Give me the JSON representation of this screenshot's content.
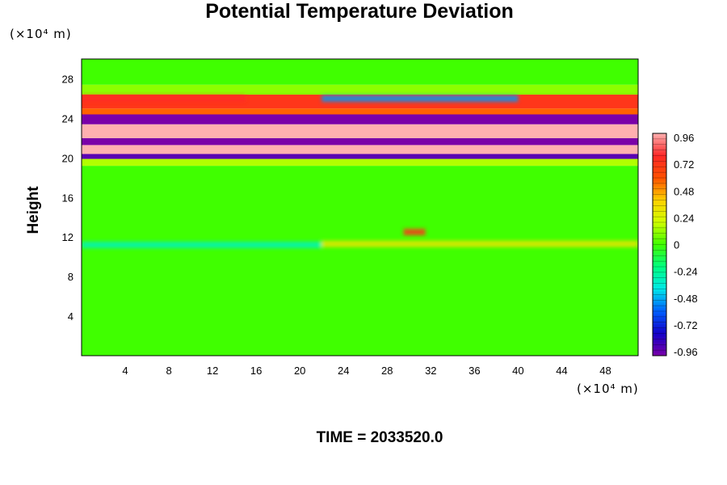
{
  "chart_data": {
    "type": "heatmap",
    "title": "Potential Temperature Deviation",
    "ylabel": "Height",
    "xlabel": "",
    "x_unit": "(×10⁴ m)",
    "y_unit": "(×10⁴ m)",
    "xlim": [
      0,
      51
    ],
    "ylim": [
      0,
      30
    ],
    "x_ticks": [
      4,
      8,
      12,
      16,
      20,
      24,
      28,
      32,
      36,
      40,
      44,
      48
    ],
    "y_ticks": [
      4,
      8,
      12,
      16,
      20,
      24,
      28
    ],
    "colorbar": {
      "range": [
        -0.96,
        0.96
      ],
      "tick_labels": [
        "0.96",
        "0.72",
        "0.48",
        "0.24",
        "0",
        "-0.24",
        "-0.48",
        "-0.72",
        "-0.96"
      ],
      "stops": [
        "#7a00a8",
        "#1200c8",
        "#0060ff",
        "#00e8e8",
        "#00ff80",
        "#40ff00",
        "#d0ff00",
        "#ffd000",
        "#ff5000",
        "#ff2828",
        "#ffb0b0"
      ]
    },
    "bands": [
      {
        "y0": 0,
        "y1": 19.2,
        "value": 0.0
      },
      {
        "y0": 19.2,
        "y1": 19.9,
        "value": 0.15
      },
      {
        "y0": 19.9,
        "y1": 20.4,
        "value": -0.9
      },
      {
        "y0": 20.4,
        "y1": 21.3,
        "value": 1.0
      },
      {
        "y0": 21.3,
        "y1": 22.0,
        "value": -1.0
      },
      {
        "y0": 22.0,
        "y1": 23.4,
        "value": 1.0
      },
      {
        "y0": 23.4,
        "y1": 24.4,
        "value": -1.0
      },
      {
        "y0": 24.4,
        "y1": 25.0,
        "value": 0.55
      },
      {
        "y0": 25.0,
        "y1": 26.4,
        "value": 0.7
      },
      {
        "y0": 26.4,
        "y1": 27.4,
        "value": 0.1
      },
      {
        "y0": 27.4,
        "y1": 30,
        "value": 0.0
      }
    ],
    "features": [
      {
        "y": 11.2,
        "x0": 0,
        "x1": 22,
        "value": -0.3
      },
      {
        "y": 11.3,
        "x0": 22,
        "x1": 51,
        "value": 0.3
      },
      {
        "y": 12.5,
        "x0": 29.5,
        "x1": 31.5,
        "value": 0.7
      },
      {
        "y": 26.0,
        "x0": 0,
        "x1": 15,
        "value": 0.75
      },
      {
        "y": 26.0,
        "x0": 22,
        "x1": 40,
        "value": -0.5
      }
    ]
  },
  "footer": {
    "time": "TIME = 2033520.0"
  }
}
